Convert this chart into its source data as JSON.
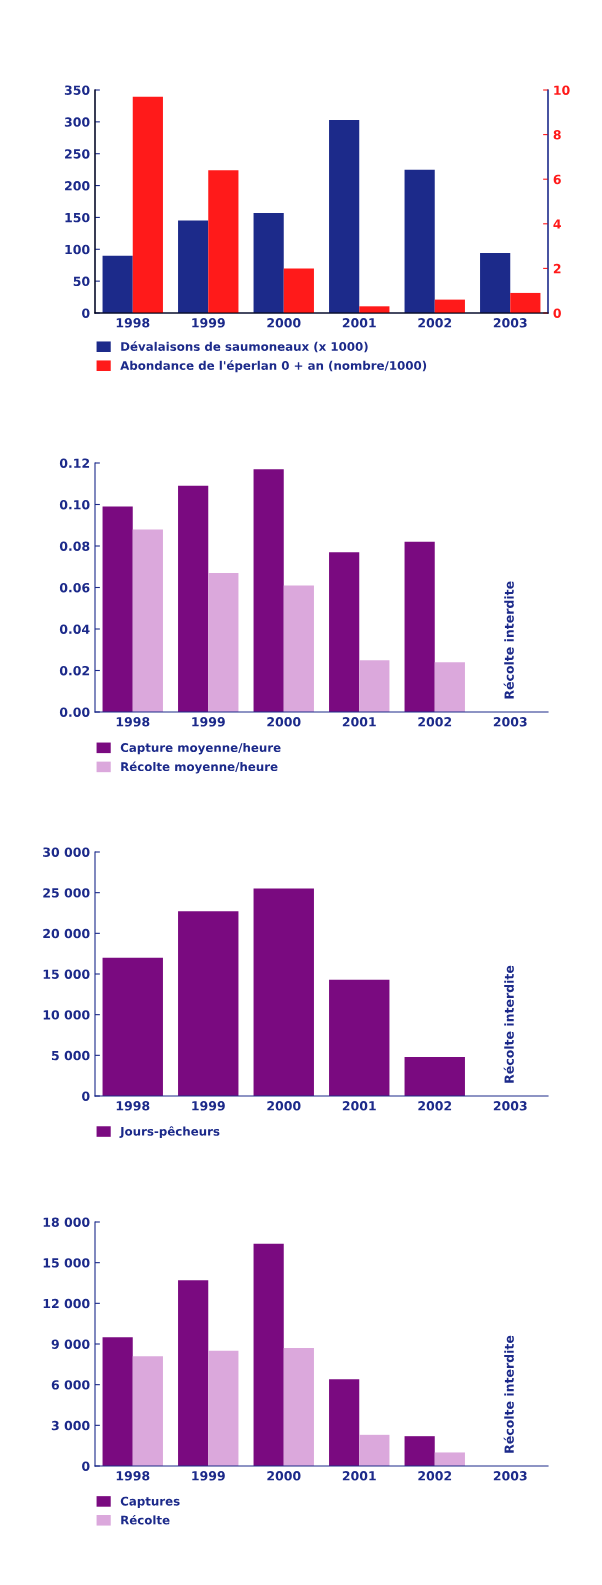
{
  "chart_data": [
    {
      "type": "bar",
      "categories": [
        "1998",
        "1999",
        "2000",
        "2001",
        "2002",
        "2003"
      ],
      "series": [
        {
          "name": "Dévalaisons de saumoneaux (x 1000)",
          "color": "#1c2a8a",
          "values": [
            90,
            145,
            157,
            303,
            225,
            94
          ]
        },
        {
          "name": "Abondance de l'éperlan 0 + an (nombre/1000)",
          "color": "#ff1a1a",
          "values": [
            9.7,
            6.4,
            2.0,
            0.3,
            0.6,
            0.9
          ],
          "axis": "y2"
        }
      ],
      "ylim": [
        0,
        350
      ],
      "yticks": [
        0,
        50,
        100,
        150,
        200,
        250,
        300,
        350
      ],
      "y2lim": [
        0,
        10
      ],
      "y2ticks": [
        0,
        2,
        4,
        6,
        8,
        10
      ],
      "legend": "bottom",
      "grid": false
    },
    {
      "type": "bar",
      "categories": [
        "1998",
        "1999",
        "2000",
        "2001",
        "2002",
        "2003"
      ],
      "series": [
        {
          "name": "Capture moyenne/heure",
          "color": "#7a0a80",
          "values": [
            0.099,
            0.109,
            0.117,
            0.077,
            0.082,
            null
          ]
        },
        {
          "name": "Récolte moyenne/heure",
          "color": "#dba8dc",
          "values": [
            0.088,
            0.067,
            0.061,
            0.025,
            0.024,
            null
          ]
        }
      ],
      "ylim": [
        0,
        0.12
      ],
      "yticks": [
        {
          "value": 0,
          "label": "0.00"
        },
        {
          "value": 0.02,
          "label": "0.02"
        },
        {
          "value": 0.04,
          "label": "0.04"
        },
        {
          "value": 0.06,
          "label": "0.06"
        },
        {
          "value": 0.08,
          "label": "0.08"
        },
        {
          "value": 0.1,
          "label": "0.10"
        },
        {
          "value": 0.12,
          "label": "0.12"
        }
      ],
      "annotations": [
        "Récolte interdite"
      ],
      "legend": "bottom",
      "grid": false
    },
    {
      "type": "bar",
      "categories": [
        "1998",
        "1999",
        "2000",
        "2001",
        "2002",
        "2003"
      ],
      "series": [
        {
          "name": "Jours-pêcheurs",
          "color": "#7a0a80",
          "values": [
            17000,
            22700,
            25500,
            14300,
            4800,
            null
          ]
        }
      ],
      "ylim": [
        0,
        30000
      ],
      "yticks": [
        0,
        {
          "value": 5000,
          "label": "5 000"
        },
        {
          "value": 10000,
          "label": "10 000"
        },
        {
          "value": 15000,
          "label": "15 000"
        },
        {
          "value": 20000,
          "label": "20 000"
        },
        {
          "value": 25000,
          "label": "25 000"
        },
        {
          "value": 30000,
          "label": "30 000"
        }
      ],
      "annotations": [
        "Récolte interdite"
      ],
      "legend": "bottom",
      "grid": false
    },
    {
      "type": "bar",
      "categories": [
        "1998",
        "1999",
        "2000",
        "2001",
        "2002",
        "2003"
      ],
      "series": [
        {
          "name": "Captures",
          "color": "#7a0a80",
          "values": [
            9500,
            13700,
            16400,
            6400,
            2200,
            null
          ]
        },
        {
          "name": "Récolte",
          "color": "#dba8dc",
          "values": [
            8100,
            8500,
            8700,
            2300,
            1000,
            null
          ]
        }
      ],
      "ylim": [
        0,
        18000
      ],
      "yticks": [
        0,
        {
          "value": 3000,
          "label": "3 000"
        },
        {
          "value": 6000,
          "label": "6 000"
        },
        {
          "value": 9000,
          "label": "9 000"
        },
        {
          "value": 12000,
          "label": "12 000"
        },
        {
          "value": 15000,
          "label": "15 000"
        },
        {
          "value": 18000,
          "label": "18 000"
        }
      ],
      "annotations": [
        "Récolte interdite"
      ],
      "legend": "bottom",
      "grid": false
    }
  ]
}
